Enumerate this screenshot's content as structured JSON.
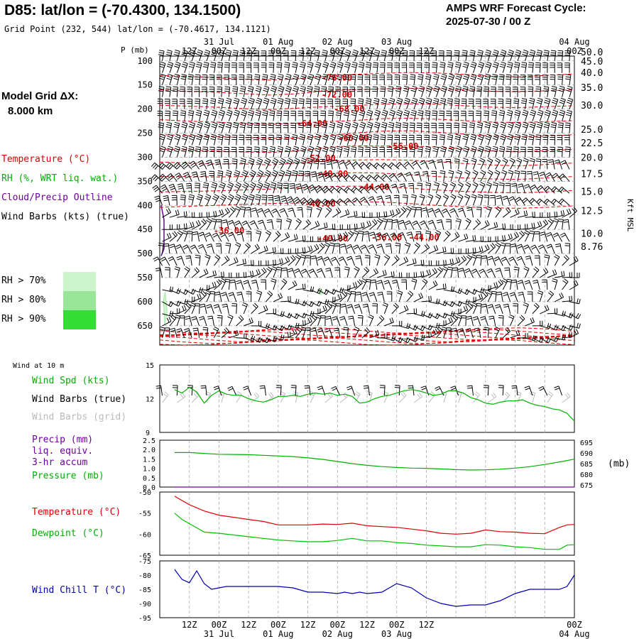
{
  "header": {
    "title": "D85:  lat/lon = (-70.4300, 134.1500)",
    "grid_point": "Grid Point (232, 544) lat/lon = (-70.4617, 134.1121)",
    "cycle_line1": "AMPS WRF Forecast Cycle:",
    "cycle_line2": "2025-07-30 / 00  Z"
  },
  "left_panel": {
    "model_grid_label": "Model Grid ΔX:",
    "model_grid_value": "8.000 km",
    "legend_items": [
      {
        "label": "Temperature (°C)",
        "color": "#e00000"
      },
      {
        "label": "RH (%, WRT liq. wat.)",
        "color": "#00b000"
      },
      {
        "label": "Cloud/Precip Outline",
        "color": "#7000a0"
      },
      {
        "label": "Wind Barbs (kts) (true)",
        "color": "#000000"
      }
    ],
    "rh_legend": [
      {
        "label": "RH > 70%",
        "color": "#ccf5cc"
      },
      {
        "label": "RH > 80%",
        "color": "#99e699"
      },
      {
        "label": "RH > 90%",
        "color": "#33dd33"
      }
    ]
  },
  "colors": {
    "temperature": "#e00000",
    "dewpoint": "#00c000",
    "wind_chill": "#0000b0",
    "green": "#00b000",
    "purple": "#7000a0",
    "barb": "#000000",
    "grid_barb": "#bbbbbb",
    "grid": "#999999"
  },
  "time_axis": {
    "hour_labels": [
      "12Z",
      "00Z",
      "12Z",
      "00Z",
      "12Z",
      "00Z",
      "12Z",
      "00Z",
      "12Z",
      "00Z"
    ],
    "date_labels": [
      "31 Jul",
      "01 Aug",
      "02 Aug",
      "03 Aug",
      "04 Aug"
    ]
  },
  "chart_data": [
    {
      "type": "heatmap",
      "panel": "vertical profile",
      "ylabel": "P (mb)",
      "right_label": "Kft MSL",
      "y_ticks": [
        100,
        150,
        200,
        250,
        300,
        350,
        400,
        450,
        500,
        550,
        600,
        650
      ],
      "ylim": [
        90,
        690
      ],
      "right_ticks": [
        "50.0",
        "45.0",
        "40.0",
        "35.0",
        "30.0",
        "25.0",
        "22.5",
        "20.0",
        "17.5",
        "15.0",
        "12.5",
        "10.0",
        "8.76"
      ],
      "right_tick_pressure": [
        81,
        100,
        124,
        155,
        192,
        242,
        270,
        300,
        334,
        371,
        411,
        458,
        485
      ],
      "temperature_contour_labels": [
        {
          "label": "-76.00",
          "x": 39,
          "p": 135
        },
        {
          "label": "-72.00",
          "x": 39,
          "p": 170
        },
        {
          "label": "-68.00",
          "x": 42,
          "p": 200
        },
        {
          "label": "-64.00",
          "x": 33,
          "p": 230
        },
        {
          "label": "-60.00",
          "x": 43,
          "p": 260
        },
        {
          "label": "-56.00",
          "x": 55,
          "p": 277
        },
        {
          "label": "-52.00",
          "x": 35,
          "p": 302
        },
        {
          "label": "-48.00",
          "x": 38,
          "p": 335
        },
        {
          "label": "-44.00",
          "x": 48,
          "p": 362
        },
        {
          "label": "-40.00",
          "x": 35,
          "p": 397
        },
        {
          "label": "-36.00",
          "x": 13,
          "p": 453
        },
        {
          "label": "-40.00",
          "x": 38,
          "p": 469
        },
        {
          "label": "-36.00",
          "x": 51,
          "p": 467
        },
        {
          "label": "-44.00",
          "x": 60,
          "p": 467
        }
      ],
      "temperature_contours": [
        {
          "value": -76,
          "p": [
            130,
            132,
            135,
            138,
            140,
            137,
            132,
            128,
            126,
            124,
            125,
            128,
            132,
            133,
            130,
            127
          ]
        },
        {
          "value": -72,
          "p": [
            160,
            163,
            165,
            168,
            171,
            168,
            162,
            160,
            158,
            157,
            158,
            160,
            163,
            164,
            162,
            160
          ]
        },
        {
          "value": -68,
          "p": [
            192,
            194,
            196,
            199,
            201,
            198,
            195,
            193,
            190,
            189,
            190,
            193,
            196,
            197,
            195,
            193
          ]
        },
        {
          "value": -64,
          "p": [
            222,
            225,
            227,
            230,
            232,
            229,
            226,
            224,
            220,
            219,
            221,
            224,
            227,
            228,
            226,
            224
          ]
        },
        {
          "value": -60,
          "p": [
            253,
            255,
            257,
            259,
            261,
            260,
            256,
            250,
            246,
            245,
            248,
            252,
            256,
            258,
            256,
            253
          ]
        },
        {
          "value": -56,
          "p": [
            283,
            285,
            287,
            289,
            290,
            287,
            280,
            276,
            277,
            276,
            279,
            283,
            287,
            289,
            286,
            284
          ]
        },
        {
          "value": -52,
          "p": [
            310,
            312,
            314,
            314,
            316,
            312,
            308,
            306,
            305,
            306,
            309,
            313,
            316,
            318,
            315,
            312
          ]
        },
        {
          "value": -48,
          "p": [
            340,
            340,
            341,
            340,
            339,
            337,
            334,
            332,
            333,
            336,
            340,
            343,
            345,
            346,
            343,
            340
          ]
        },
        {
          "value": -44,
          "p": [
            372,
            371,
            370,
            368,
            366,
            364,
            361,
            360,
            361,
            364,
            368,
            371,
            373,
            374,
            372,
            369
          ]
        },
        {
          "value": -40,
          "p": [
            404,
            402,
            400,
            398,
            396,
            395,
            393,
            392,
            393,
            396,
            400,
            403,
            405,
            406,
            404,
            401
          ]
        }
      ],
      "barb_rows_p": [
        100,
        125,
        150,
        175,
        200,
        225,
        250,
        275,
        300,
        325,
        350,
        375,
        400,
        425,
        450,
        475,
        500,
        525,
        550,
        575,
        600,
        625,
        650,
        675
      ],
      "rh_patches": [
        {
          "threshold": 70,
          "x": [
            1.5,
            2.2,
            3.0,
            2.0
          ],
          "p": [
            595,
            580,
            620,
            650
          ]
        },
        {
          "threshold": 70,
          "x": [
            64.3,
            65.2,
            66.0,
            65.0
          ],
          "p": [
            577,
            572,
            580,
            586
          ]
        }
      ],
      "cloud_outline_p": [
        400,
        430,
        460,
        490,
        505
      ]
    },
    {
      "type": "line",
      "panel": "surface wind",
      "title": "Wind at 10 m",
      "legend": [
        "Wind Spd (kts)",
        "Wind Barbs (true)",
        "Wind Barbs (grid)"
      ],
      "ylim": [
        9,
        15
      ],
      "y_ticks": [
        9,
        12,
        15
      ],
      "x_hours": [
        6,
        9,
        12,
        15,
        18,
        21,
        24,
        27,
        30,
        33,
        36,
        39,
        42,
        45,
        48,
        51,
        54,
        57,
        60,
        63,
        66,
        69,
        72,
        75,
        78,
        81,
        84,
        87,
        90,
        93,
        96,
        99,
        102,
        105,
        108,
        111,
        114,
        117,
        120,
        123,
        126,
        129,
        132,
        135,
        138,
        141,
        144,
        147,
        150,
        153,
        156,
        159,
        162,
        165,
        168
      ],
      "series": [
        {
          "name": "Wind Spd (kts)",
          "values": [
            12.8,
            12.5,
            13.0,
            12.6,
            11.6,
            12.3,
            12.7,
            12.4,
            12.3,
            12.3,
            12.0,
            11.8,
            11.7,
            11.9,
            12.2,
            12.2,
            12.3,
            12.2,
            12.4,
            12.5,
            12.4,
            12.5,
            12.3,
            12.4,
            12.2,
            11.6,
            11.7,
            12.0,
            12.2,
            12.3,
            12.5,
            12.7,
            12.8,
            12.7,
            12.5,
            12.3,
            12.4,
            12.7,
            12.7,
            12.5,
            12.1,
            11.9,
            11.6,
            11.5,
            11.7,
            11.8,
            11.8,
            11.9,
            11.6,
            11.4,
            11.3,
            11.1,
            11.0,
            10.7,
            10.0
          ]
        }
      ]
    },
    {
      "type": "line",
      "panel": "precip and pressure",
      "legend": [
        "Precip (mm)",
        "liq. equiv.",
        "3-hr accum",
        "Pressure (mb)"
      ],
      "left_ticks": [
        "2.5",
        "2.0",
        "1.5",
        "1.0",
        "0.5",
        "0.0"
      ],
      "right_ticks": [
        "695",
        "690",
        "685",
        "680",
        "675"
      ],
      "right_unit": "(mb)",
      "ylim_precip": [
        0,
        2.5
      ],
      "ylim_pressure": [
        674,
        696
      ],
      "x_hours": [
        6,
        12,
        18,
        24,
        30,
        36,
        42,
        48,
        54,
        60,
        66,
        72,
        78,
        84,
        90,
        96,
        102,
        108,
        114,
        120,
        126,
        132,
        138,
        144,
        150,
        156,
        162,
        168
      ],
      "series": [
        {
          "name": "Pressure (mb)",
          "values": [
            690.2,
            690.2,
            689.8,
            689.4,
            689.3,
            689.2,
            688.9,
            688.6,
            688.3,
            687.7,
            687.0,
            686.0,
            685.0,
            684.2,
            683.6,
            683.2,
            682.9,
            682.8,
            682.5,
            682.2,
            682.0,
            682.1,
            682.4,
            682.9,
            683.6,
            684.6,
            685.8,
            687.1
          ]
        },
        {
          "name": "Precip (mm)",
          "values": [
            0,
            0,
            0,
            0,
            0,
            0,
            0,
            0,
            0,
            0,
            0,
            0,
            0,
            0,
            0,
            0,
            0,
            0,
            0,
            0,
            0,
            0,
            0,
            0,
            0,
            0,
            0,
            0
          ]
        }
      ]
    },
    {
      "type": "line",
      "panel": "temperature",
      "legend": [
        "Temperature (°C)",
        "Dewpoint (°C)"
      ],
      "ylim": [
        -65,
        -50
      ],
      "y_ticks": [
        -50,
        -55,
        -60,
        -65
      ],
      "x_hours": [
        6,
        9,
        12,
        18,
        24,
        30,
        36,
        42,
        48,
        54,
        60,
        66,
        72,
        78,
        84,
        90,
        96,
        102,
        108,
        114,
        120,
        126,
        132,
        138,
        144,
        150,
        156,
        162,
        165,
        168
      ],
      "series": [
        {
          "name": "Temperature (°C)",
          "values": [
            -51.0,
            -52.0,
            -53.0,
            -54.5,
            -55.5,
            -56.0,
            -56.5,
            -57.0,
            -57.8,
            -57.8,
            -57.8,
            -57.6,
            -57.7,
            -57.4,
            -58.0,
            -58.2,
            -58.4,
            -58.8,
            -59.2,
            -59.8,
            -60.0,
            -59.8,
            -59.0,
            -59.4,
            -59.5,
            -59.8,
            -59.9,
            -58.4,
            -57.8,
            -57.7
          ]
        },
        {
          "name": "Dewpoint (°C)",
          "values": [
            -55.0,
            -56.5,
            -57.5,
            -59.5,
            -59.8,
            -60.2,
            -60.6,
            -61.0,
            -61.4,
            -61.6,
            -61.8,
            -61.8,
            -61.5,
            -61.0,
            -61.6,
            -61.6,
            -62.0,
            -62.2,
            -62.6,
            -62.8,
            -63.0,
            -63.0,
            -62.5,
            -62.6,
            -63.0,
            -63.2,
            -63.6,
            -63.6,
            -62.6,
            -62.5
          ]
        }
      ]
    },
    {
      "type": "line",
      "panel": "wind chill",
      "legend": [
        "Wind Chill T (°C)"
      ],
      "ylim": [
        -95,
        -75
      ],
      "y_ticks": [
        -75,
        -80,
        -85,
        -90,
        -95
      ],
      "x_hours": [
        6,
        9,
        12,
        15,
        18,
        21,
        24,
        27,
        30,
        36,
        42,
        48,
        54,
        60,
        66,
        72,
        75,
        78,
        81,
        84,
        90,
        96,
        102,
        108,
        114,
        117,
        120,
        126,
        132,
        138,
        144,
        150,
        156,
        162,
        165,
        168
      ],
      "series": [
        {
          "name": "Wind Chill T (°C)",
          "values": [
            -78.0,
            -81.5,
            -82.7,
            -78.5,
            -83.0,
            -85.0,
            -84.5,
            -84.0,
            -84.0,
            -84.0,
            -84.0,
            -84.0,
            -84.5,
            -86.0,
            -86.0,
            -86.5,
            -86.0,
            -86.5,
            -86.0,
            -86.5,
            -86.0,
            -83.0,
            -84.5,
            -88.0,
            -90.0,
            -90.5,
            -91.0,
            -90.5,
            -90.5,
            -89.0,
            -86.5,
            -85.0,
            -85.0,
            -85.0,
            -84.0,
            -80.0
          ]
        }
      ]
    }
  ]
}
